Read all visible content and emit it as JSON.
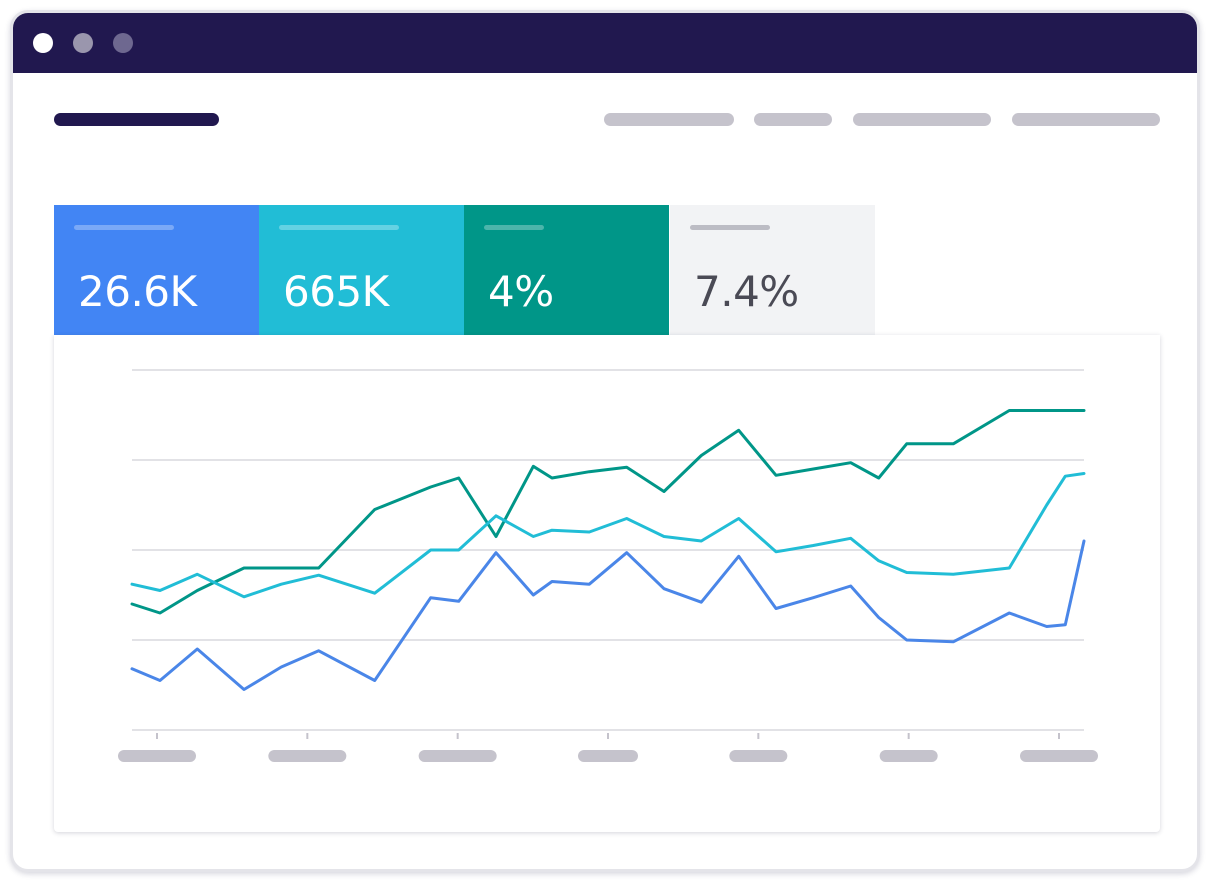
{
  "window": {
    "titlebar_color": "#21184f",
    "dots": [
      "#ffffff",
      "#9a96ad",
      "#6e6890"
    ]
  },
  "header": {
    "logo_color": "#21184f",
    "nav_items_count_visible": 4
  },
  "metrics": [
    {
      "value": "26.6K",
      "color": "#4285f4",
      "label_bar_color": "#7aa9f7"
    },
    {
      "value": "665K",
      "color": "#21bdd6",
      "label_bar_color": "#64d2e3"
    },
    {
      "value": "4%",
      "color": "#009688",
      "label_bar_color": "#4cb5ab"
    },
    {
      "value": "7.4%",
      "color": "#f2f3f5",
      "label_bar_color": "#bcbcc4"
    }
  ],
  "chart_data": {
    "type": "line",
    "grid": true,
    "ylim": [
      0,
      4
    ],
    "x": [
      0,
      3,
      7,
      12,
      16,
      20,
      26,
      32,
      35,
      39,
      43,
      45,
      49,
      53,
      57,
      61,
      65,
      69,
      73,
      77,
      80,
      83,
      88,
      94,
      98,
      100,
      102
    ],
    "series": [
      {
        "color": "#009688",
        "values": [
          1.4,
          1.3,
          1.55,
          1.8,
          1.8,
          1.8,
          2.45,
          2.7,
          2.8,
          2.15,
          2.93,
          2.8,
          2.87,
          2.92,
          2.65,
          3.05,
          3.33,
          2.83,
          2.9,
          2.97,
          2.8,
          3.18,
          3.18,
          3.55,
          3.55,
          3.55,
          3.55
        ]
      },
      {
        "color": "#21bdd6",
        "values": [
          1.62,
          1.55,
          1.73,
          1.48,
          1.62,
          1.72,
          1.52,
          2.0,
          2.0,
          2.38,
          2.15,
          2.22,
          2.2,
          2.35,
          2.15,
          2.1,
          2.35,
          1.98,
          2.05,
          2.13,
          1.88,
          1.75,
          1.73,
          1.8,
          2.5,
          2.82,
          2.85
        ]
      },
      {
        "color": "#4a86e8",
        "values": [
          0.68,
          0.55,
          0.9,
          0.45,
          0.7,
          0.88,
          0.55,
          1.47,
          1.43,
          1.97,
          1.5,
          1.65,
          1.62,
          1.97,
          1.57,
          1.42,
          1.93,
          1.35,
          1.47,
          1.6,
          1.25,
          1.0,
          0.98,
          1.3,
          1.15,
          1.17,
          2.1
        ]
      }
    ],
    "x_tick_count": 7
  }
}
